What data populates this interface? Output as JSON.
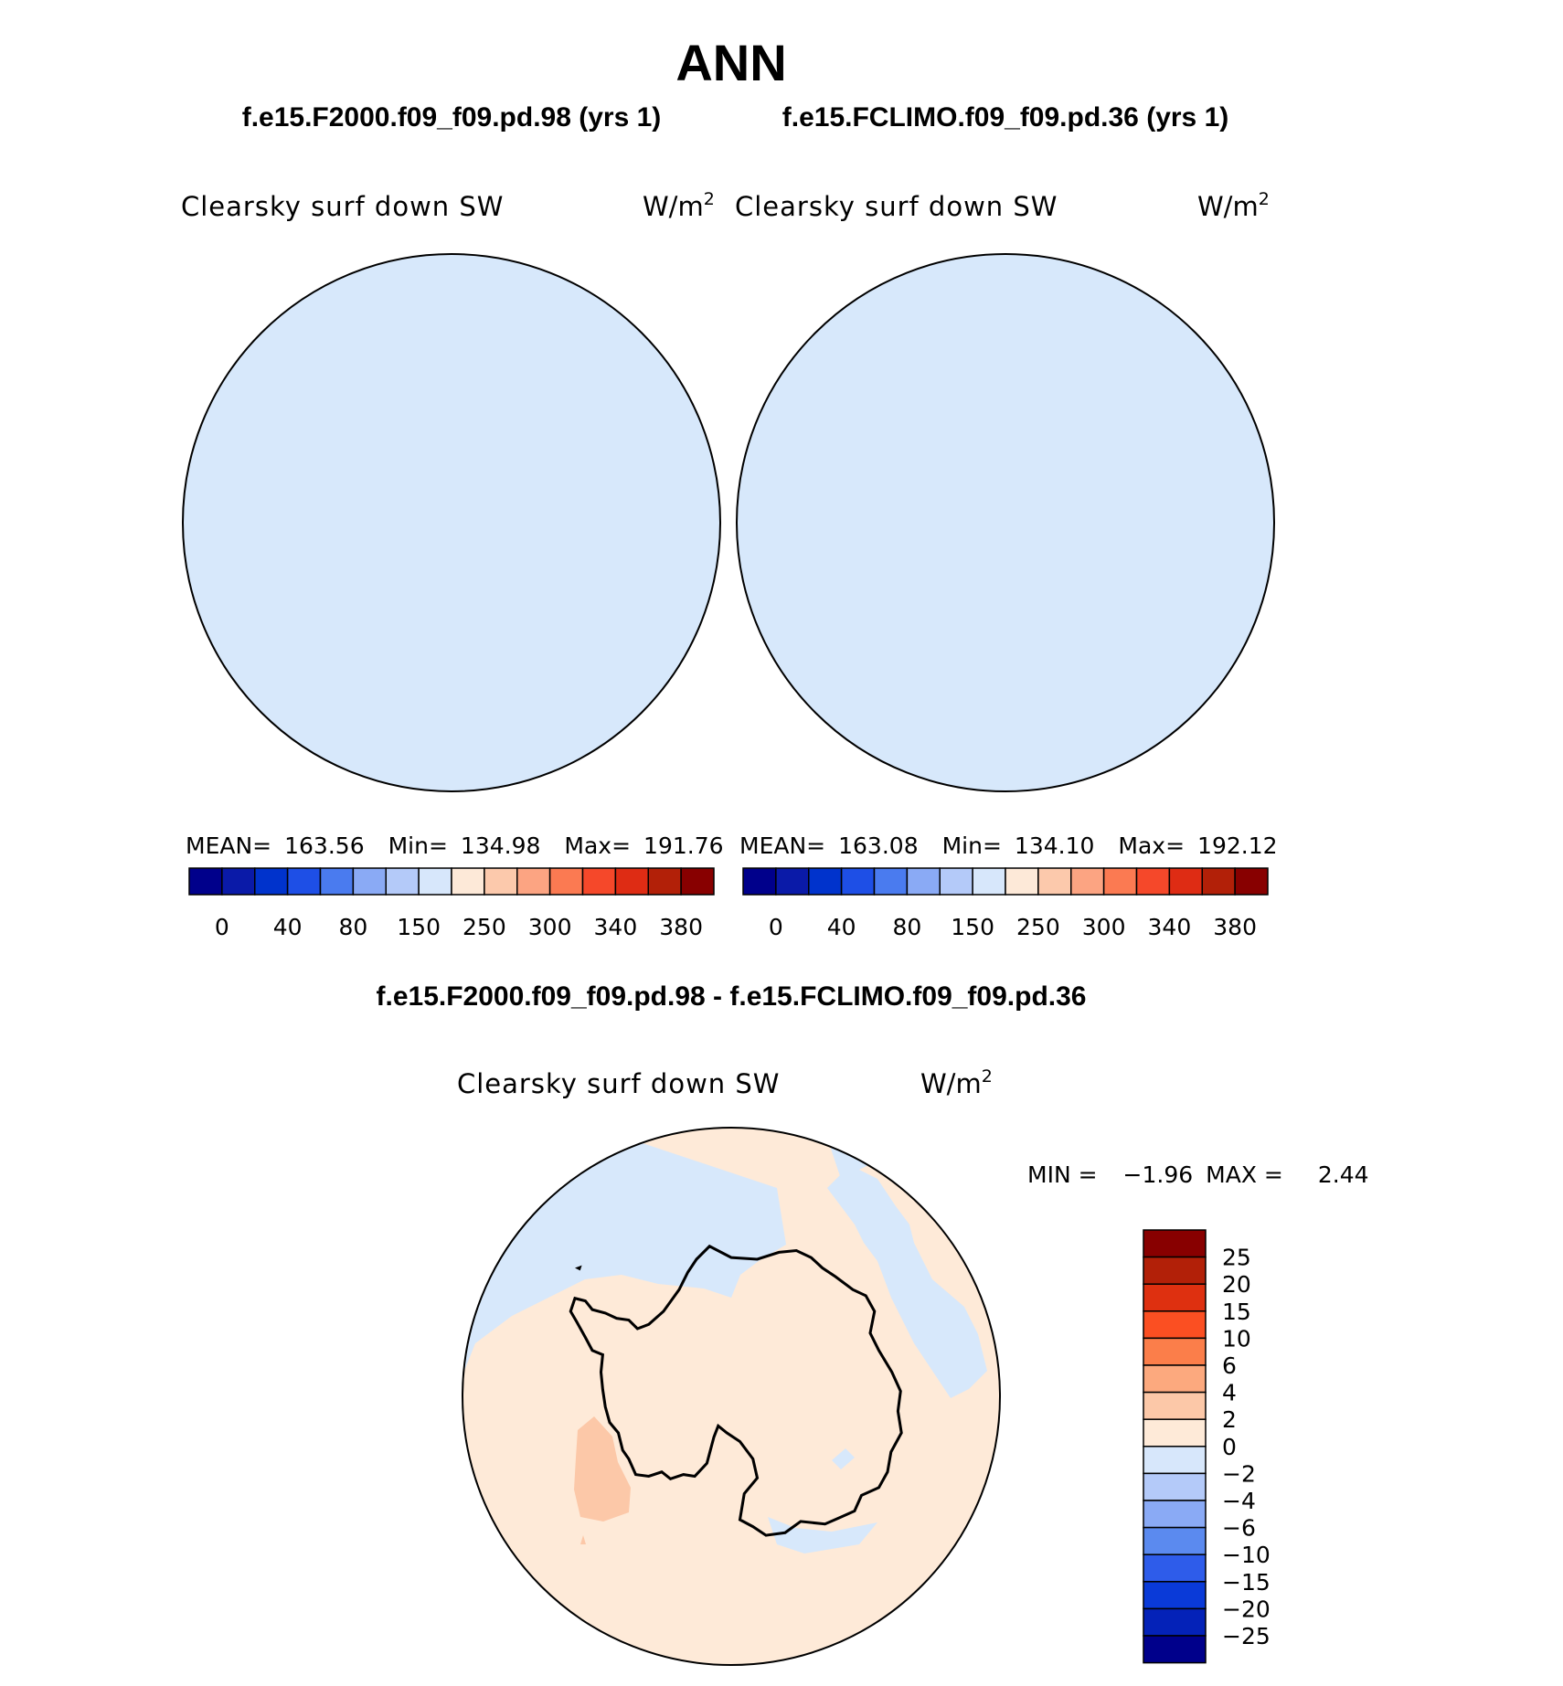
{
  "figure": {
    "title": "ANN",
    "left_case": "f.e15.F2000.f09_f09.pd.98 (yrs 1)",
    "right_case": "f.e15.FCLIMO.f09_f09.pd.36 (yrs 1)",
    "diff_case": "f.e15.F2000.f09_f09.pd.98 - f.e15.FCLIMO.f09_f09.pd.36"
  },
  "panels": [
    {
      "variable": "Clearsky surf down SW",
      "units_base": "W/m",
      "units_exp": "2",
      "stats": {
        "mean_label": "MEAN=",
        "mean": "163.56",
        "min_label": "Min=",
        "min": "134.98",
        "max_label": "Max=",
        "max": "191.76"
      }
    },
    {
      "variable": "Clearsky surf down SW",
      "units_base": "W/m",
      "units_exp": "2",
      "stats": {
        "mean_label": "MEAN=",
        "mean": "163.08",
        "min_label": "Min=",
        "min": "134.10",
        "max_label": "Max=",
        "max": "192.12"
      }
    }
  ],
  "diff_panel": {
    "variable": "Clearsky surf down SW",
    "units_base": "W/m",
    "units_exp": "2",
    "min_label": "MIN =",
    "min": "−1.96",
    "max_label": "MAX =",
    "max": "2.44"
  },
  "main_colorbar": {
    "colors": [
      "#00008b",
      "#0a1aa8",
      "#0033cc",
      "#1e4fe6",
      "#4a7bef",
      "#8aaaf5",
      "#b4caf9",
      "#d7e7fb",
      "#fde9d8",
      "#fcc9ac",
      "#fca482",
      "#fb7a52",
      "#f5482a",
      "#de2c14",
      "#b22008",
      "#880000"
    ],
    "labels": [
      "0",
      "40",
      "80",
      "150",
      "250",
      "300",
      "340",
      "380"
    ]
  },
  "diff_colorbar": {
    "colors": [
      "#880000",
      "#b22008",
      "#de3010",
      "#fb4f22",
      "#fb7e4a",
      "#fca97e",
      "#fcc8a8",
      "#feead8",
      "#d7e7fb",
      "#b4caf9",
      "#8aaaf5",
      "#5b8aef",
      "#2e5cea",
      "#0a3ad8",
      "#0422b8",
      "#00008b"
    ],
    "labels": [
      "25",
      "20",
      "15",
      "10",
      "6",
      "4",
      "2",
      "0",
      "−2",
      "−4",
      "−6",
      "−10",
      "−15",
      "−20",
      "−25"
    ]
  },
  "map_colors": {
    "ocean_light_blue": "#d7e8fb",
    "interior_blue": "#b4caf9",
    "diff_light_orange": "#feead8",
    "diff_orange": "#fcc8a8",
    "coastline": "#000000"
  }
}
